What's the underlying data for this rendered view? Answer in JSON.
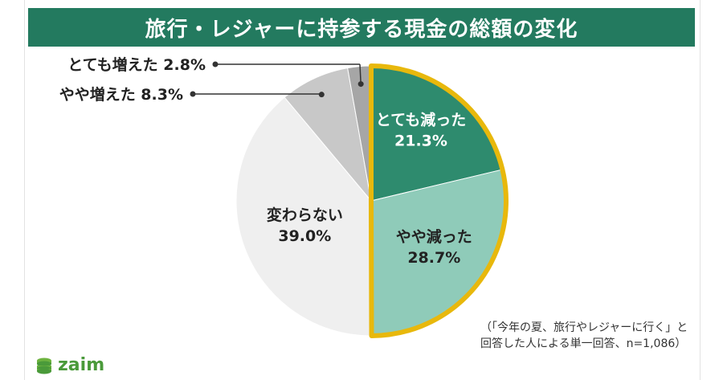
{
  "header": {
    "title": "旅行・レジャーに持参する現金の総額の変化"
  },
  "chart_data": {
    "type": "pie",
    "title": "旅行・レジャーに持参する現金の総額の変化",
    "slices": [
      {
        "label": "とても減った",
        "value": 21.3,
        "value_label": "21.3%",
        "color": "#2e8b6e",
        "text_color": "#ffffff"
      },
      {
        "label": "やや減った",
        "value": 28.7,
        "value_label": "28.7%",
        "color": "#8fcbb9",
        "text_color": "#222222"
      },
      {
        "label": "変わらない",
        "value": 39.0,
        "value_label": "39.0%",
        "color": "#efefef",
        "text_color": "#222222"
      },
      {
        "label": "やや増えた",
        "value": 8.3,
        "value_label": "8.3%",
        "color": "#c8c8c8",
        "text_color": "#222222"
      },
      {
        "label": "とても増えた",
        "value": 2.8,
        "value_label": "2.8%",
        "color": "#a6a6a6",
        "text_color": "#222222"
      }
    ],
    "highlight": {
      "color": "#e8b80c"
    },
    "start": "12 o'clock, clockwise"
  },
  "note": {
    "line1": "（「今年の夏、旅行やレジャーに行く」と",
    "line2": "回答した人による単一回答、n=1,086）"
  },
  "logo": {
    "text": "zaim",
    "color": "#4a9a3a"
  }
}
